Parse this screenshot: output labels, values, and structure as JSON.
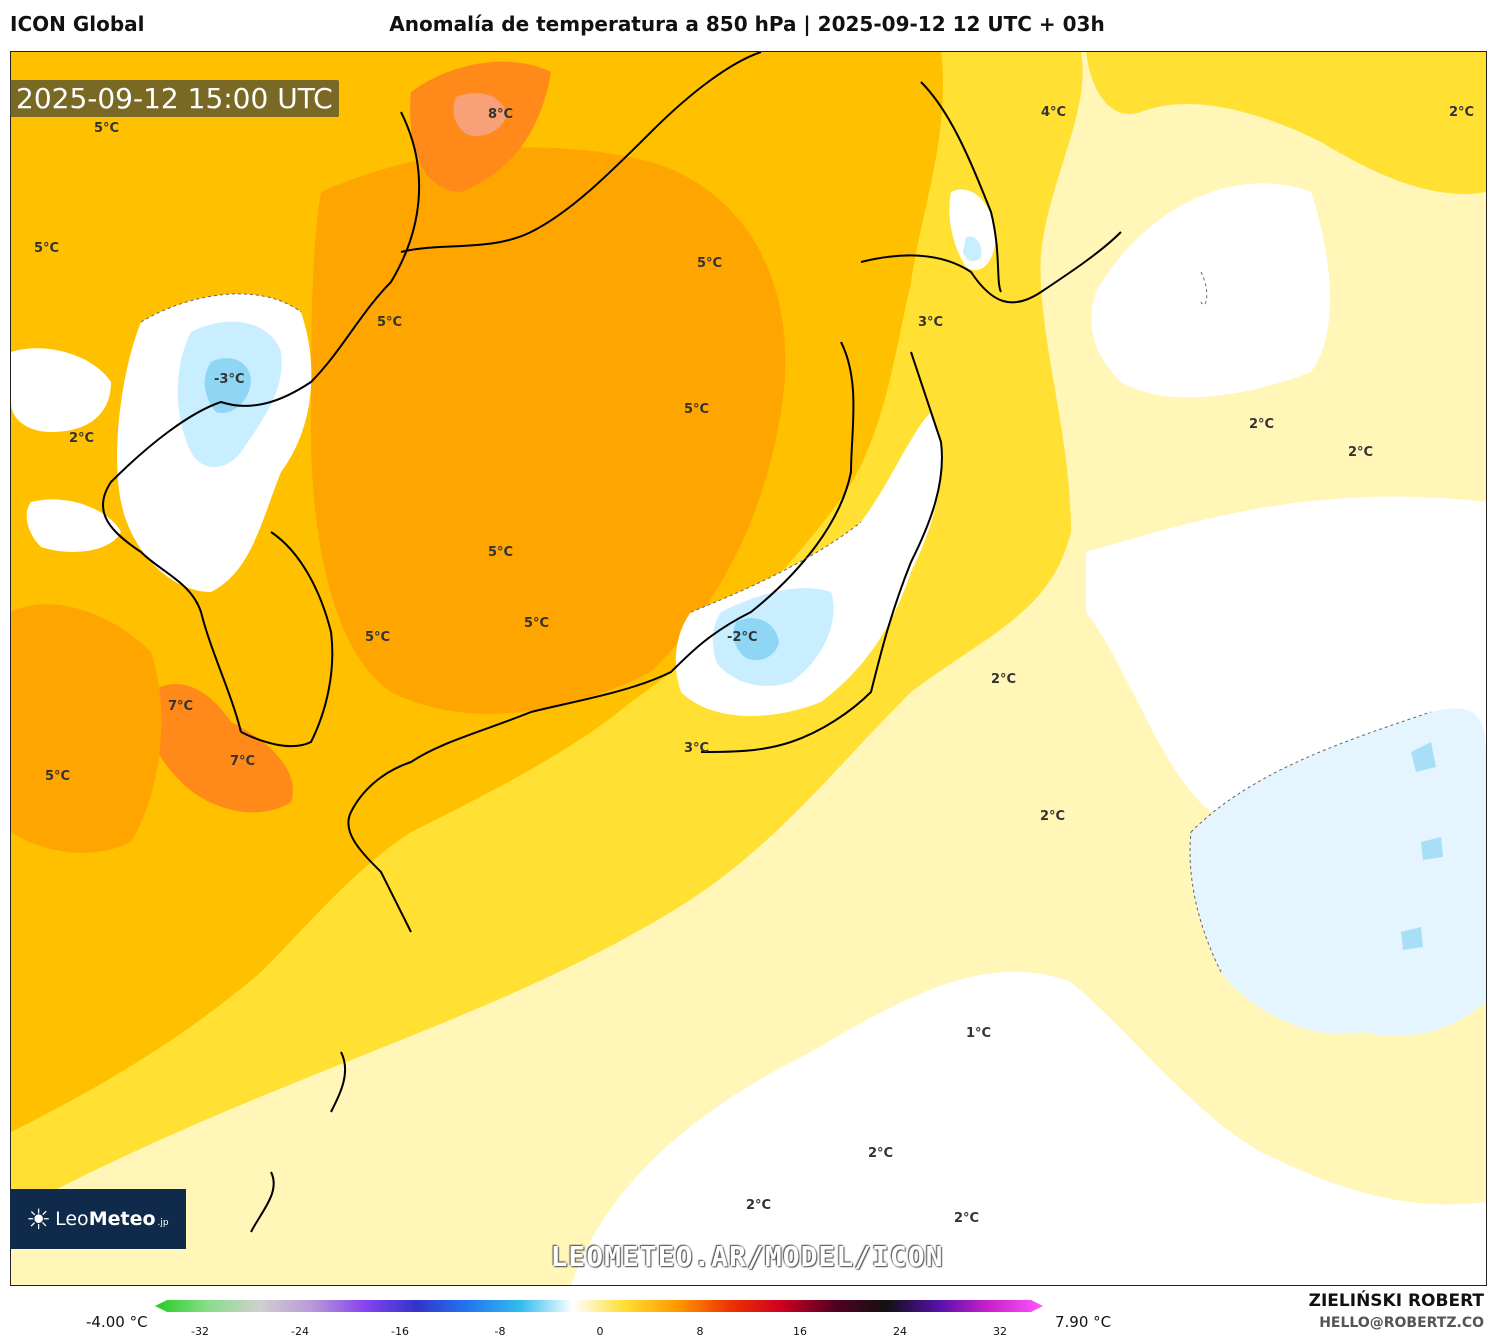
{
  "header": {
    "model": "ICON Global",
    "title": "Anomalía de temperatura a 850 hPa | 2025-09-12 12 UTC + 03h"
  },
  "map": {
    "timestamp": "2025-09-12 15:00 UTC",
    "watermark": "LEOMETEO.AR/MODEL/ICON",
    "logo": {
      "brand_light": "Leo",
      "brand_bold": "Meteo",
      "suffix": ".jp"
    },
    "colors": {
      "light_yellow": "#fff6b8",
      "yellow": "#ffe033",
      "gold": "#ffc000",
      "orange": "#ffa500",
      "dark_orange": "#ff7a10",
      "salmon": "#f8a078",
      "light_blue": "#c8eeff",
      "blue": "#8fd6f5",
      "white": "#ffffff"
    },
    "labels": [
      {
        "text": "8°C"
      },
      {
        "text": "5°C"
      },
      {
        "text": "5°C"
      },
      {
        "text": "4°C"
      },
      {
        "text": "2°C"
      },
      {
        "text": "5°C"
      },
      {
        "text": "5°C"
      },
      {
        "text": "3°C"
      },
      {
        "text": "-3°C"
      },
      {
        "text": "2°C"
      },
      {
        "text": "5°C"
      },
      {
        "text": "2°C"
      },
      {
        "text": "2°C"
      },
      {
        "text": "5°C"
      },
      {
        "text": "5°C"
      },
      {
        "text": "5°C"
      },
      {
        "text": "-2°C"
      },
      {
        "text": "2°C"
      },
      {
        "text": "7°C"
      },
      {
        "text": "7°C"
      },
      {
        "text": "5°C"
      },
      {
        "text": "3°C"
      },
      {
        "text": "2°C"
      },
      {
        "text": "1°C"
      },
      {
        "text": "2°C"
      },
      {
        "text": "2°C"
      },
      {
        "text": "2°C"
      }
    ]
  },
  "colorbar": {
    "min_label": "-4.00 °C",
    "max_label": "7.90 °C",
    "ticks": [
      "-32",
      "-24",
      "-16",
      "-8",
      "0",
      "8",
      "16",
      "24",
      "32"
    ],
    "stops": [
      "#22cc22",
      "#88dd88",
      "#d0d0d0",
      "#b89ad8",
      "#8844ee",
      "#3333cc",
      "#2277ee",
      "#33bbee",
      "#ffffff",
      "#ffdd33",
      "#ff9900",
      "#ee3300",
      "#cc0022",
      "#550022",
      "#111111",
      "#5511aa",
      "#cc22cc",
      "#ff55ff"
    ]
  },
  "credits": {
    "author": "ZIELIŃSKI ROBERT",
    "email": "HELLO@ROBERTZ.CO"
  }
}
